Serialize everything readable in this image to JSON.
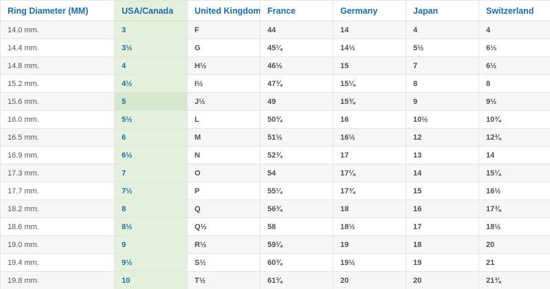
{
  "table": {
    "columns": [
      "Ring Diameter (MM)",
      "USA/Canada",
      "United Kingdom",
      "France",
      "Germany",
      "Japan",
      "Switzerland"
    ],
    "rows": [
      [
        "14.0 mm.",
        "3",
        "F",
        "44",
        "14",
        "4",
        "4"
      ],
      [
        "14.4 mm.",
        "3½",
        "G",
        "45¼",
        "14½",
        "5½",
        "6⅓"
      ],
      [
        "14.8 mm.",
        "4",
        "H½",
        "46½",
        "15",
        "7",
        "6½"
      ],
      [
        "15.2 mm.",
        "4½",
        "I½",
        "47¾",
        "15¼",
        "8",
        "8"
      ],
      [
        "15.6 mm.",
        "5",
        "J½",
        "49",
        "15¾",
        "9",
        "9½"
      ],
      [
        "16.0 mm.",
        "5½",
        "L",
        "50¾",
        "16",
        "10½",
        "10¾"
      ],
      [
        "16.5 mm.",
        "6",
        "M",
        "51½",
        "16½",
        "12",
        "12¾"
      ],
      [
        "16.9 mm.",
        "6½",
        "N",
        "52¾",
        "17",
        "13",
        "14"
      ],
      [
        "17.3 mm.",
        "7",
        "O",
        "54",
        "17¼",
        "14",
        "15¼"
      ],
      [
        "17.7 mm.",
        "7½",
        "P",
        "55¼",
        "17¾",
        "15",
        "16½"
      ],
      [
        "18.2 mm.",
        "8",
        "Q",
        "56¾",
        "18",
        "16",
        "17¾"
      ],
      [
        "18.6 mm.",
        "8½",
        "Q½",
        "58",
        "18½",
        "17",
        "18½"
      ],
      [
        "19.0 mm.",
        "9",
        "R½",
        "59¼",
        "19",
        "18",
        "20"
      ],
      [
        "19.4 mm.",
        "9½",
        "S½",
        "60¾",
        "19½",
        "19",
        "21"
      ],
      [
        "19.8 mm.",
        "10",
        "T½",
        "61¾",
        "20",
        "20",
        "21¾"
      ]
    ],
    "highlighted_row_index": 4,
    "highlighted_column_index": 1,
    "colors": {
      "header_text": "#1b6ca8",
      "body_text": "#4d4d4d",
      "usa_column_bg": "#e3f0dc",
      "usa_column_highlight_bg": "#d5e8cc",
      "stripe_bg": "#f6f6f6",
      "border": "#e3e3e3"
    }
  }
}
